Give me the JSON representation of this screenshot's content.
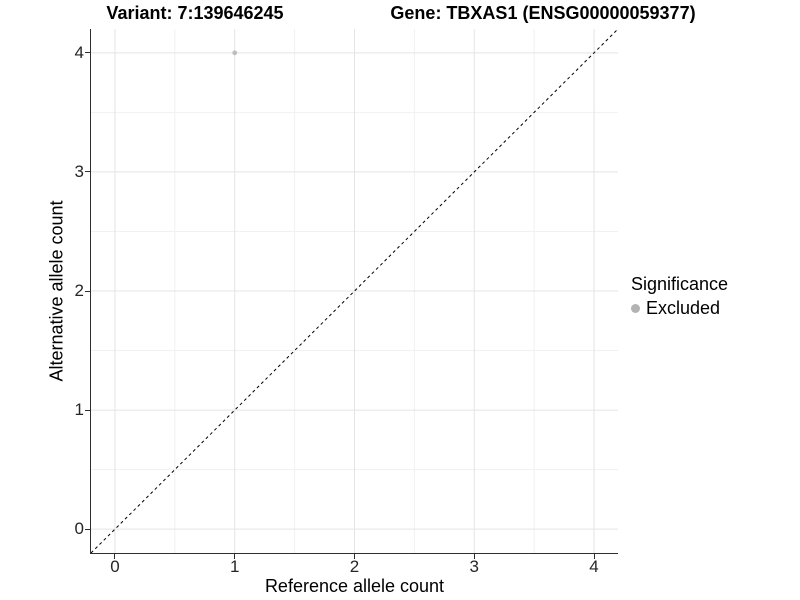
{
  "chart_data": {
    "type": "scatter",
    "title_left": "Variant: 7:139646245",
    "title_right": "Gene: TBXAS1 (ENSG00000059377)",
    "xlabel": "Reference allele count",
    "ylabel": "Alternative allele count",
    "xlim": [
      -0.2,
      4.2
    ],
    "ylim": [
      -0.2,
      4.2
    ],
    "x_ticks": [
      0,
      1,
      2,
      3,
      4
    ],
    "y_ticks": [
      0,
      1,
      2,
      3,
      4
    ],
    "x_minor_ticks": [
      0.5,
      1.5,
      2.5,
      3.5
    ],
    "y_minor_ticks": [
      0.5,
      1.5,
      2.5,
      3.5
    ],
    "grid": "major and minor gridlines on, white background",
    "series": [
      {
        "name": "Excluded",
        "color": "#bebebe",
        "point_radius": 2.4,
        "points": [
          {
            "x": 1,
            "y": 4
          }
        ]
      }
    ],
    "reference_line": {
      "kind": "identity y=x",
      "from": [
        -0.2,
        -0.2
      ],
      "to": [
        4.2,
        4.2
      ],
      "style": "dashed",
      "color": "#000000"
    },
    "legend": {
      "title": "Significance",
      "position": "right",
      "items": [
        {
          "label": "Excluded",
          "color": "#b3b3b3"
        }
      ]
    }
  },
  "colors": {
    "background": "#ffffff",
    "grid_major": "#e4e4e4",
    "grid_minor": "#f1f1f1",
    "axis_line": "#2e2e2e",
    "tick_text": "#262626"
  }
}
